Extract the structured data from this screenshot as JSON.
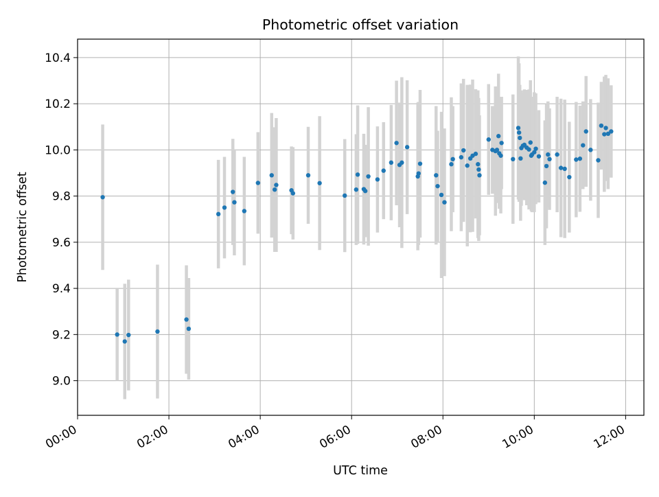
{
  "chart_data": {
    "type": "scatter",
    "title": "Photometric offset variation",
    "xlabel": "UTC time",
    "ylabel": "Photometric offset",
    "xlim": [
      "00:00",
      "12:24"
    ],
    "ylim": [
      8.85,
      10.48
    ],
    "grid": true,
    "x_ticks": [
      "00:00",
      "02:00",
      "04:00",
      "06:00",
      "08:00",
      "10:00",
      "12:00"
    ],
    "y_ticks": [
      "9.0",
      "9.2",
      "9.4",
      "9.6",
      "9.8",
      "10.0",
      "10.2",
      "10.4"
    ],
    "colors": {
      "point": "#1f77b4",
      "errorbar": "#d3d3d3",
      "grid": "#b0b0b0"
    },
    "series": [
      {
        "x": [
          "00:33",
          "00:52",
          "01:02",
          "01:07",
          "01:45",
          "02:23",
          "02:26",
          "03:05",
          "03:13",
          "03:24",
          "03:26",
          "03:39",
          "03:57",
          "04:15",
          "04:19",
          "04:21",
          "04:41",
          "04:43",
          "05:03",
          "05:18",
          "05:51",
          "06:06",
          "06:08",
          "06:16",
          "06:18",
          "06:22",
          "06:34",
          "06:42",
          "06:52",
          "06:59",
          "07:03",
          "07:06",
          "07:13",
          "07:27",
          "07:28",
          "07:30",
          "07:51",
          "07:53",
          "07:58",
          "08:02",
          "08:11",
          "08:13",
          "08:24",
          "08:27",
          "08:32",
          "08:36",
          "08:39",
          "08:43",
          "08:46",
          "08:47",
          "08:48",
          "09:00",
          "09:05",
          "09:09",
          "09:11",
          "09:13",
          "09:14",
          "09:16",
          "09:17",
          "09:32",
          "09:39",
          "09:40",
          "09:41",
          "09:42",
          "09:43",
          "09:45",
          "09:47",
          "09:50",
          "09:53",
          "09:55",
          "09:56",
          "09:57",
          "10:00",
          "10:02",
          "10:06",
          "10:14",
          "10:16",
          "10:18",
          "10:20",
          "10:30",
          "10:35",
          "10:40",
          "10:46",
          "10:55",
          "11:00",
          "11:04",
          "11:08",
          "11:14",
          "11:24",
          "11:28",
          "11:32",
          "11:34",
          "11:37",
          "11:41"
        ],
        "y": [
          9.795,
          9.2,
          9.17,
          9.198,
          9.213,
          9.265,
          9.225,
          9.722,
          9.75,
          9.818,
          9.773,
          9.735,
          9.857,
          9.89,
          9.828,
          9.848,
          9.825,
          9.812,
          9.89,
          9.856,
          9.802,
          9.828,
          9.893,
          9.83,
          9.822,
          9.885,
          9.872,
          9.91,
          9.945,
          10.03,
          9.935,
          9.945,
          10.012,
          9.885,
          9.898,
          9.94,
          9.89,
          9.843,
          9.805,
          9.773,
          9.938,
          9.96,
          9.968,
          9.998,
          9.932,
          9.963,
          9.975,
          9.983,
          9.938,
          9.915,
          9.89,
          10.045,
          10.0,
          9.995,
          10.0,
          10.06,
          9.985,
          9.975,
          10.03,
          9.96,
          10.095,
          10.075,
          10.052,
          9.963,
          10.008,
          10.018,
          10.022,
          10.01,
          10.002,
          10.032,
          9.975,
          9.98,
          9.99,
          10.005,
          9.972,
          9.858,
          9.93,
          9.98,
          9.96,
          9.98,
          9.922,
          9.918,
          9.882,
          9.958,
          9.962,
          10.02,
          10.08,
          10.0,
          9.955,
          10.105,
          10.068,
          10.095,
          10.07,
          10.08
        ],
        "yerr": [
          0.315,
          0.2,
          0.25,
          0.24,
          0.29,
          0.235,
          0.22,
          0.235,
          0.22,
          0.23,
          0.23,
          0.235,
          0.22,
          0.27,
          0.27,
          0.29,
          0.19,
          0.2,
          0.21,
          0.29,
          0.245,
          0.24,
          0.3,
          0.24,
          0.2,
          0.3,
          0.23,
          0.21,
          0.25,
          0.27,
          0.27,
          0.37,
          0.29,
          0.32,
          0.31,
          0.32,
          0.3,
          0.24,
          0.36,
          0.32,
          0.29,
          0.23,
          0.32,
          0.31,
          0.35,
          0.32,
          0.33,
          0.28,
          0.32,
          0.31,
          0.26,
          0.24,
          0.19,
          0.28,
          0.23,
          0.27,
          0.24,
          0.25,
          0.2,
          0.28,
          0.31,
          0.3,
          0.23,
          0.27,
          0.25,
          0.23,
          0.24,
          0.25,
          0.26,
          0.27,
          0.24,
          0.25,
          0.26,
          0.24,
          0.2,
          0.27,
          0.27,
          0.23,
          0.22,
          0.25,
          0.3,
          0.3,
          0.24,
          0.25,
          0.23,
          0.19,
          0.24,
          0.22,
          0.25,
          0.19,
          0.25,
          0.23,
          0.24,
          0.2
        ]
      }
    ]
  }
}
